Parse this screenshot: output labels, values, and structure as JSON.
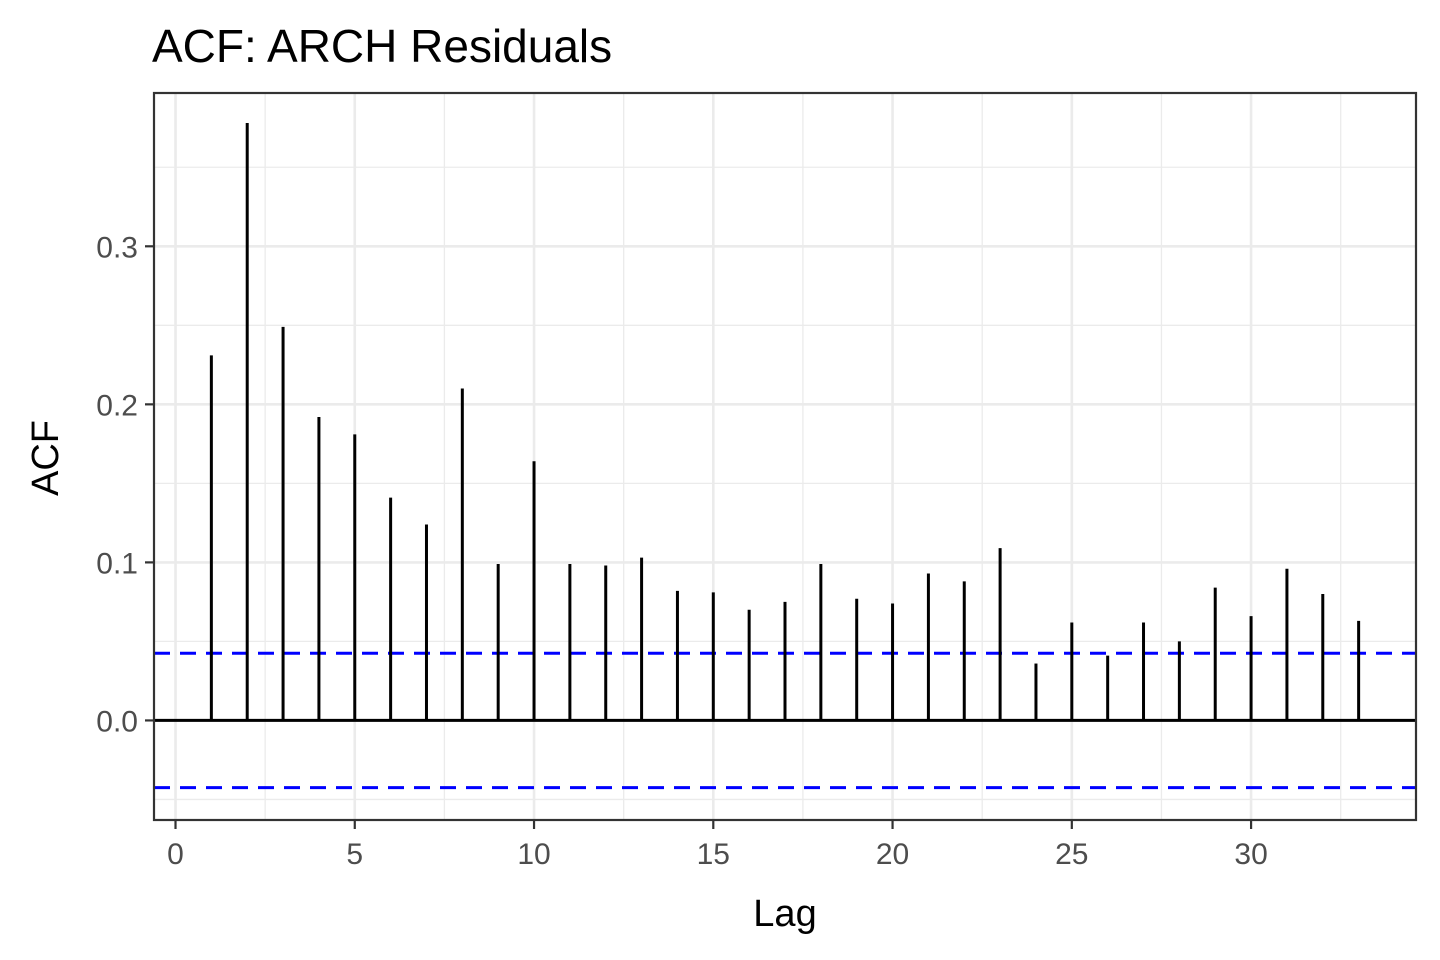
{
  "chart_data": {
    "type": "bar",
    "subtype": "acf-stem",
    "title": "ACF: ARCH Residuals",
    "xlabel": "Lag",
    "ylabel": "ACF",
    "xlim": [
      -0.6,
      34.6
    ],
    "ylim": [
      -0.063,
      0.397
    ],
    "x_ticks": [
      0,
      5,
      10,
      15,
      20,
      25,
      30
    ],
    "x_tick_labels": [
      "0",
      "5",
      "10",
      "15",
      "20",
      "25",
      "30"
    ],
    "y_ticks": [
      0.0,
      0.1,
      0.2,
      0.3
    ],
    "y_tick_labels": [
      "0.0",
      "0.1",
      "0.2",
      "0.3"
    ],
    "grid": true,
    "legend": "none",
    "confidence_bound": 0.0425,
    "colors": {
      "stem": "#000000",
      "confidence": "#0000ff",
      "grid": "#ebebeb",
      "panel_border": "#333333"
    },
    "x": [
      1,
      2,
      3,
      4,
      5,
      6,
      7,
      8,
      9,
      10,
      11,
      12,
      13,
      14,
      15,
      16,
      17,
      18,
      19,
      20,
      21,
      22,
      23,
      24,
      25,
      26,
      27,
      28,
      29,
      30,
      31,
      32,
      33
    ],
    "values": [
      0.231,
      0.378,
      0.249,
      0.192,
      0.181,
      0.141,
      0.124,
      0.21,
      0.099,
      0.164,
      0.099,
      0.098,
      0.103,
      0.082,
      0.081,
      0.07,
      0.075,
      0.099,
      0.077,
      0.074,
      0.093,
      0.088,
      0.109,
      0.036,
      0.062,
      0.041,
      0.062,
      0.05,
      0.084,
      0.066,
      0.096,
      0.08,
      0.063
    ]
  }
}
